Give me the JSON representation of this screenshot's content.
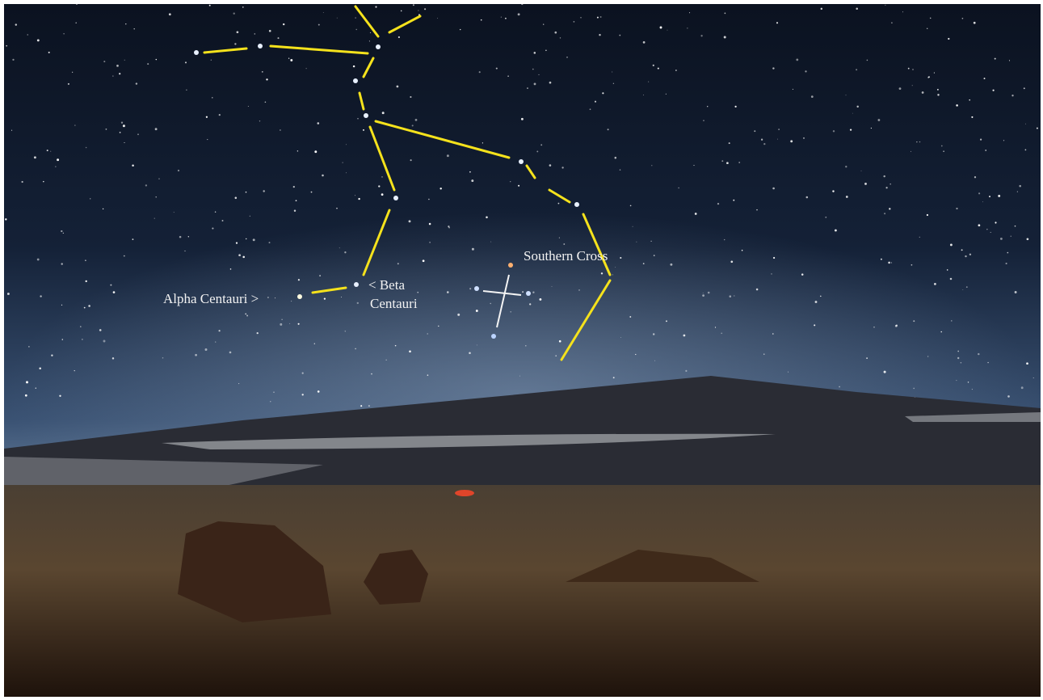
{
  "labels": {
    "southern_cross": "Southern Cross",
    "beta_centauri": [
      "< Beta",
      "Centauri"
    ],
    "alpha_centauri": "Alpha Centauri >"
  }
}
